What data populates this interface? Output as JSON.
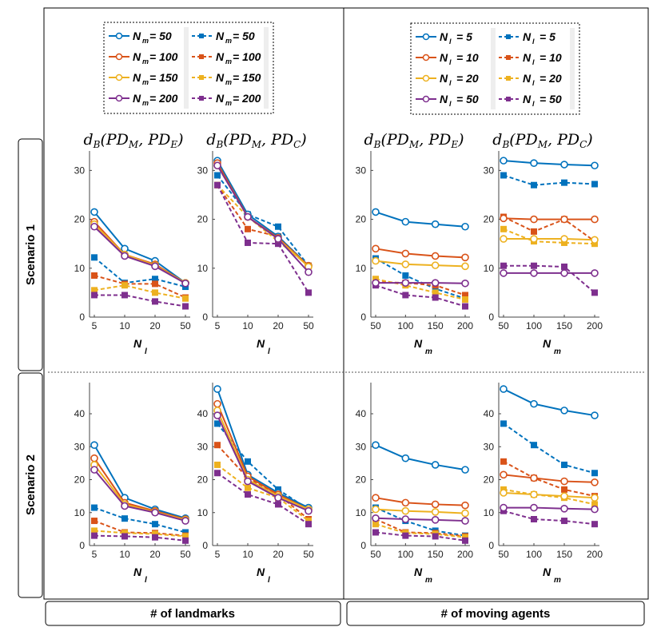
{
  "row_labels": [
    "Scenario 1",
    "Scenario 2"
  ],
  "col_labels": [
    "# of landmarks",
    "# of moving agents"
  ],
  "legends": [
    {
      "var": "N",
      "sub": "m",
      "entries": [
        "= 50",
        "= 100",
        "= 150",
        "= 200"
      ]
    },
    {
      "var": "N",
      "sub": "l",
      "entries": [
        "= 5",
        "= 10",
        "= 20",
        "= 50"
      ]
    }
  ],
  "colors": [
    "#0072BD",
    "#D95319",
    "#EDB120",
    "#7E2F8E"
  ],
  "chart_data": [
    {
      "type": "line",
      "id": "s1-lm-E",
      "title": "dB(PD_M, PD_E)",
      "xlabel": "N",
      "xsub": "l",
      "categories": [
        "5",
        "10",
        "20",
        "50"
      ],
      "ylim": [
        0,
        33
      ],
      "yticks": [
        0,
        10,
        20,
        30
      ],
      "series": [
        {
          "name": "N_m = 50 (solid)",
          "style": "solid",
          "values": [
            21.5,
            14,
            11.5,
            7
          ]
        },
        {
          "name": "N_m = 100 (solid)",
          "style": "solid",
          "values": [
            19.5,
            12.8,
            10.8,
            7
          ]
        },
        {
          "name": "N_m = 150 (solid)",
          "style": "solid",
          "values": [
            19,
            12.8,
            10.6,
            7
          ]
        },
        {
          "name": "N_m = 200 (solid)",
          "style": "solid",
          "values": [
            18.5,
            12.5,
            10.4,
            6.9
          ]
        },
        {
          "name": "N_m = 50 (dashed)",
          "style": "dashed",
          "values": [
            12.2,
            7,
            7.8,
            6.2
          ]
        },
        {
          "name": "N_m = 100 (dashed)",
          "style": "dashed",
          "values": [
            8.5,
            6.8,
            6.8,
            4
          ]
        },
        {
          "name": "N_m = 150 (dashed)",
          "style": "dashed",
          "values": [
            5.5,
            6.5,
            5,
            3.8
          ]
        },
        {
          "name": "N_m = 200 (dashed)",
          "style": "dashed",
          "values": [
            4.5,
            4.5,
            3.2,
            2.2
          ]
        }
      ]
    },
    {
      "type": "line",
      "id": "s1-lm-C",
      "title": "dB(PD_M, PD_C)",
      "xlabel": "N",
      "xsub": "l",
      "categories": [
        "5",
        "10",
        "20",
        "50"
      ],
      "ylim": [
        0,
        33
      ],
      "yticks": [
        0,
        10,
        20,
        30
      ],
      "series": [
        {
          "name": "N_m = 50 (solid)",
          "style": "solid",
          "values": [
            32,
            21,
            16.5,
            10.5
          ]
        },
        {
          "name": "N_m = 100 (solid)",
          "style": "solid",
          "values": [
            31.5,
            20.5,
            16.2,
            10.5
          ]
        },
        {
          "name": "N_m = 150 (solid)",
          "style": "solid",
          "values": [
            31,
            20.5,
            16,
            10.3
          ]
        },
        {
          "name": "N_m = 200 (solid)",
          "style": "solid",
          "values": [
            31,
            20.5,
            16,
            9.2
          ]
        },
        {
          "name": "N_m = 50 (dashed)",
          "style": "dashed",
          "values": [
            29,
            21,
            18.5,
            10.5
          ]
        },
        {
          "name": "N_m = 100 (dashed)",
          "style": "dashed",
          "values": [
            27,
            18,
            16.5,
            10.5
          ]
        },
        {
          "name": "N_m = 150 (dashed)",
          "style": "dashed",
          "values": [
            27,
            20.5,
            15.5,
            10.5
          ]
        },
        {
          "name": "N_m = 200 (dashed)",
          "style": "dashed",
          "values": [
            27,
            15.2,
            15,
            5
          ]
        }
      ]
    },
    {
      "type": "line",
      "id": "s1-ag-E",
      "title": "dB(PD_M, PD_E)",
      "xlabel": "N",
      "xsub": "m",
      "categories": [
        "50",
        "100",
        "150",
        "200"
      ],
      "ylim": [
        0,
        33
      ],
      "yticks": [
        0,
        10,
        20,
        30
      ],
      "series": [
        {
          "name": "N_l = 5 (solid)",
          "style": "solid",
          "values": [
            21.5,
            19.5,
            19,
            18.5
          ]
        },
        {
          "name": "N_l = 10 (solid)",
          "style": "solid",
          "values": [
            14,
            13,
            12.5,
            12.2
          ]
        },
        {
          "name": "N_l = 20 (solid)",
          "style": "solid",
          "values": [
            11.5,
            10.8,
            10.6,
            10.4
          ]
        },
        {
          "name": "N_l = 50 (solid)",
          "style": "solid",
          "values": [
            7,
            7,
            7,
            6.9
          ]
        },
        {
          "name": "N_l = 5 (dashed)",
          "style": "dashed",
          "values": [
            12,
            8.5,
            5.8,
            3.8
          ]
        },
        {
          "name": "N_l = 10 (dashed)",
          "style": "dashed",
          "values": [
            7.2,
            7,
            6.5,
            4.5
          ]
        },
        {
          "name": "N_l = 20 (dashed)",
          "style": "dashed",
          "values": [
            7.8,
            6.5,
            5,
            3.6
          ]
        },
        {
          "name": "N_l = 50 (dashed)",
          "style": "dashed",
          "values": [
            6.5,
            4.5,
            4,
            2.2
          ]
        }
      ]
    },
    {
      "type": "line",
      "id": "s1-ag-C",
      "title": "dB(PD_M, PD_C)",
      "xlabel": "N",
      "xsub": "m",
      "categories": [
        "50",
        "100",
        "150",
        "200"
      ],
      "ylim": [
        0,
        33
      ],
      "yticks": [
        0,
        10,
        20,
        30
      ],
      "series": [
        {
          "name": "N_l = 5 (solid)",
          "style": "solid",
          "values": [
            32,
            31.5,
            31.2,
            31
          ]
        },
        {
          "name": "N_l = 10 (solid)",
          "style": "solid",
          "values": [
            20.2,
            20,
            20,
            20
          ]
        },
        {
          "name": "N_l = 20 (solid)",
          "style": "solid",
          "values": [
            16,
            16,
            16,
            15.8
          ]
        },
        {
          "name": "N_l = 50 (solid)",
          "style": "solid",
          "values": [
            9,
            9,
            9,
            9
          ]
        },
        {
          "name": "N_l = 5 (dashed)",
          "style": "dashed",
          "values": [
            29,
            27,
            27.5,
            27.2
          ]
        },
        {
          "name": "N_l = 10 (dashed)",
          "style": "dashed",
          "values": [
            20.5,
            17.5,
            20,
            15.5
          ]
        },
        {
          "name": "N_l = 20 (dashed)",
          "style": "dashed",
          "values": [
            18,
            15.5,
            15.2,
            15
          ]
        },
        {
          "name": "N_l = 50 (dashed)",
          "style": "dashed",
          "values": [
            10.5,
            10.5,
            10.3,
            5
          ]
        }
      ]
    },
    {
      "type": "line",
      "id": "s2-lm-E",
      "title": "",
      "xlabel": "N",
      "xsub": "l",
      "categories": [
        "5",
        "10",
        "20",
        "50"
      ],
      "ylim": [
        0,
        48
      ],
      "yticks": [
        0,
        10,
        20,
        30,
        40
      ],
      "series": [
        {
          "name": "N_m = 50 (solid)",
          "style": "solid",
          "values": [
            30.5,
            14.5,
            11,
            8.3
          ]
        },
        {
          "name": "N_m = 100 (solid)",
          "style": "solid",
          "values": [
            26.5,
            13,
            10.5,
            8
          ]
        },
        {
          "name": "N_m = 150 (solid)",
          "style": "solid",
          "values": [
            24.5,
            12.5,
            10.2,
            7.8
          ]
        },
        {
          "name": "N_m = 200 (solid)",
          "style": "solid",
          "values": [
            23,
            12,
            10,
            7.5
          ]
        },
        {
          "name": "N_m = 50 (dashed)",
          "style": "dashed",
          "values": [
            11.5,
            8.2,
            6.5,
            4
          ]
        },
        {
          "name": "N_m = 100 (dashed)",
          "style": "dashed",
          "values": [
            7.5,
            4,
            3.8,
            3
          ]
        },
        {
          "name": "N_m = 150 (dashed)",
          "style": "dashed",
          "values": [
            4.5,
            3.8,
            3.5,
            2.8
          ]
        },
        {
          "name": "N_m = 200 (dashed)",
          "style": "dashed",
          "values": [
            3,
            2.8,
            2.5,
            1.5
          ]
        }
      ]
    },
    {
      "type": "line",
      "id": "s2-lm-C",
      "title": "",
      "xlabel": "N",
      "xsub": "l",
      "categories": [
        "5",
        "10",
        "20",
        "50"
      ],
      "ylim": [
        0,
        48
      ],
      "yticks": [
        0,
        10,
        20,
        30,
        40
      ],
      "series": [
        {
          "name": "N_m = 50 (solid)",
          "style": "solid",
          "values": [
            47.5,
            21.5,
            16,
            11.5
          ]
        },
        {
          "name": "N_m = 100 (solid)",
          "style": "solid",
          "values": [
            43,
            21,
            15.5,
            11
          ]
        },
        {
          "name": "N_m = 150 (solid)",
          "style": "solid",
          "values": [
            41,
            20,
            15,
            11
          ]
        },
        {
          "name": "N_m = 200 (solid)",
          "style": "solid",
          "values": [
            39.5,
            19.5,
            14.5,
            10.5
          ]
        },
        {
          "name": "N_m = 50 (dashed)",
          "style": "dashed",
          "values": [
            37,
            25.5,
            17,
            11
          ]
        },
        {
          "name": "N_m = 100 (dashed)",
          "style": "dashed",
          "values": [
            30.5,
            20.5,
            15.5,
            8
          ]
        },
        {
          "name": "N_m = 150 (dashed)",
          "style": "dashed",
          "values": [
            24.5,
            17.5,
            14.5,
            7.5
          ]
        },
        {
          "name": "N_m = 200 (dashed)",
          "style": "dashed",
          "values": [
            22,
            15.5,
            12.5,
            6.5
          ]
        }
      ]
    },
    {
      "type": "line",
      "id": "s2-ag-E",
      "title": "",
      "xlabel": "N",
      "xsub": "m",
      "categories": [
        "50",
        "100",
        "150",
        "200"
      ],
      "ylim": [
        0,
        48
      ],
      "yticks": [
        0,
        10,
        20,
        30,
        40
      ],
      "series": [
        {
          "name": "N_l = 5 (solid)",
          "style": "solid",
          "values": [
            30.5,
            26.5,
            24.5,
            23
          ]
        },
        {
          "name": "N_l = 10 (solid)",
          "style": "solid",
          "values": [
            14.5,
            13,
            12.5,
            12.2
          ]
        },
        {
          "name": "N_l = 20 (solid)",
          "style": "solid",
          "values": [
            11,
            10.5,
            10.2,
            9.8
          ]
        },
        {
          "name": "N_l = 50 (solid)",
          "style": "solid",
          "values": [
            8.3,
            8,
            7.8,
            7.5
          ]
        },
        {
          "name": "N_l = 5 (dashed)",
          "style": "dashed",
          "values": [
            11.5,
            7.5,
            4.5,
            3
          ]
        },
        {
          "name": "N_l = 10 (dashed)",
          "style": "dashed",
          "values": [
            8,
            4,
            3.8,
            2.8
          ]
        },
        {
          "name": "N_l = 20 (dashed)",
          "style": "dashed",
          "values": [
            6.5,
            3.8,
            3.5,
            2.5
          ]
        },
        {
          "name": "N_l = 50 (dashed)",
          "style": "dashed",
          "values": [
            4,
            3,
            2.8,
            1.5
          ]
        }
      ]
    },
    {
      "type": "line",
      "id": "s2-ag-C",
      "title": "",
      "xlabel": "N",
      "xsub": "m",
      "categories": [
        "50",
        "100",
        "150",
        "200"
      ],
      "ylim": [
        0,
        48
      ],
      "yticks": [
        0,
        10,
        20,
        30,
        40
      ],
      "series": [
        {
          "name": "N_l = 5 (solid)",
          "style": "solid",
          "values": [
            47.5,
            43,
            41,
            39.5
          ]
        },
        {
          "name": "N_l = 10 (solid)",
          "style": "solid",
          "values": [
            21.5,
            20.5,
            19.5,
            19.2
          ]
        },
        {
          "name": "N_l = 20 (solid)",
          "style": "solid",
          "values": [
            16,
            15.5,
            15,
            14.5
          ]
        },
        {
          "name": "N_l = 50 (solid)",
          "style": "solid",
          "values": [
            11.5,
            11.5,
            11.2,
            11
          ]
        },
        {
          "name": "N_l = 5 (dashed)",
          "style": "dashed",
          "values": [
            37,
            30.5,
            24.5,
            22
          ]
        },
        {
          "name": "N_l = 10 (dashed)",
          "style": "dashed",
          "values": [
            25.5,
            20.5,
            17,
            15
          ]
        },
        {
          "name": "N_l = 20 (dashed)",
          "style": "dashed",
          "values": [
            17,
            15.5,
            14.5,
            12.5
          ]
        },
        {
          "name": "N_l = 50 (dashed)",
          "style": "dashed",
          "values": [
            10.5,
            8,
            7.5,
            6.5
          ]
        }
      ]
    }
  ]
}
